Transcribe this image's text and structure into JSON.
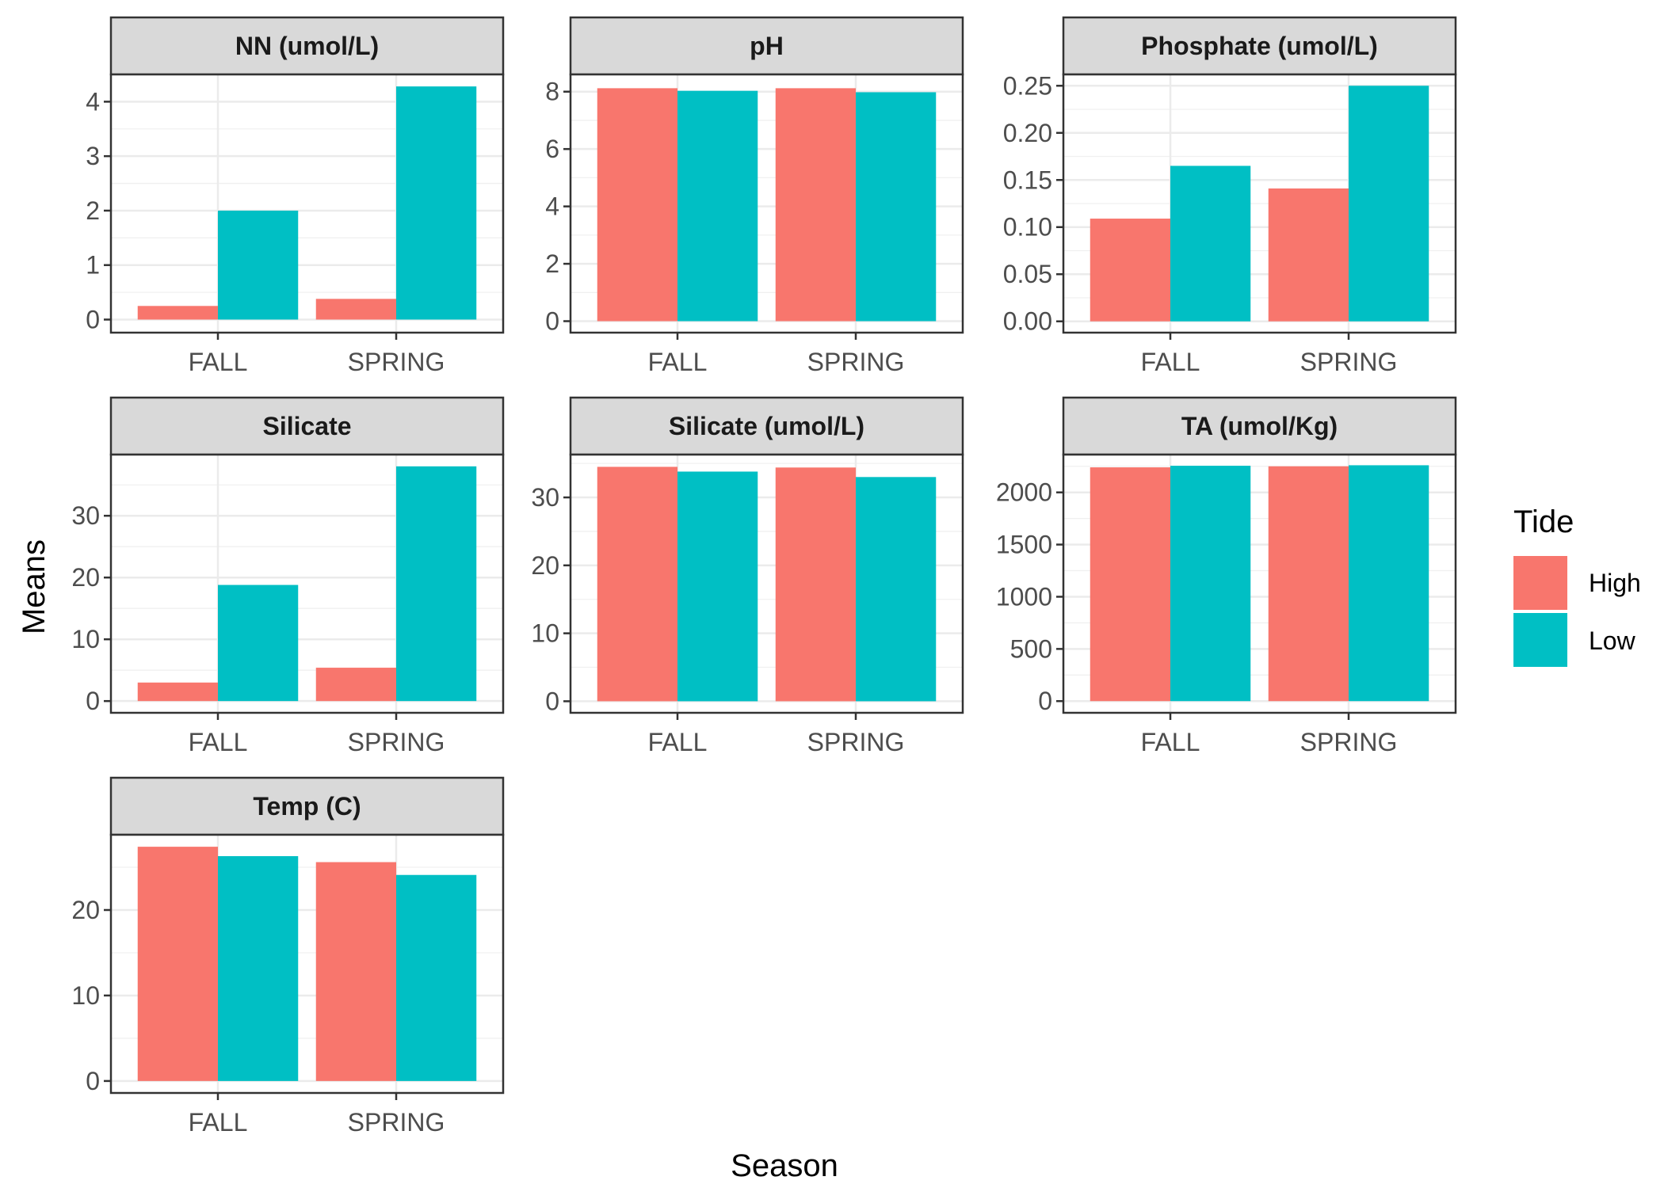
{
  "chart_data": {
    "type": "bar",
    "xlabel": "Season",
    "ylabel": "Means",
    "categories": [
      "FALL",
      "SPRING"
    ],
    "legend": {
      "title": "Tide",
      "placement": "right",
      "entries": [
        {
          "label": "High",
          "color": "#F8766D"
        },
        {
          "label": "Low",
          "color": "#00BFC4"
        }
      ]
    },
    "grid": true,
    "facets": [
      {
        "title": "NN (umol/L)",
        "ylim": [
          -0.24,
          4.5
        ],
        "yticks": [
          0,
          1,
          2,
          3,
          4
        ],
        "tick_labels": [
          "0",
          "1",
          "2",
          "3",
          "4"
        ],
        "series": [
          {
            "name": "High",
            "values": [
              0.25,
              0.38
            ]
          },
          {
            "name": "Low",
            "values": [
              2.0,
              4.28
            ]
          }
        ]
      },
      {
        "title": "pH",
        "ylim": [
          -0.4,
          8.6
        ],
        "yticks": [
          0,
          2,
          4,
          6,
          8
        ],
        "tick_labels": [
          "0",
          "2",
          "4",
          "6",
          "8"
        ],
        "series": [
          {
            "name": "High",
            "values": [
              8.12,
              8.12
            ]
          },
          {
            "name": "Low",
            "values": [
              8.03,
              7.98
            ]
          }
        ]
      },
      {
        "title": "Phosphate (umol/L)",
        "ylim": [
          -0.012,
          0.262
        ],
        "yticks": [
          0,
          0.05,
          0.1,
          0.15,
          0.2,
          0.25
        ],
        "tick_labels": [
          "0.00",
          "0.05",
          "0.10",
          "0.15",
          "0.20",
          "0.25"
        ],
        "series": [
          {
            "name": "High",
            "values": [
              0.109,
              0.141
            ]
          },
          {
            "name": "Low",
            "values": [
              0.165,
              0.25
            ]
          }
        ]
      },
      {
        "title": "Silicate",
        "ylim": [
          -1.9,
          39.9
        ],
        "yticks": [
          0,
          10,
          20,
          30
        ],
        "tick_labels": [
          "0",
          "10",
          "20",
          "30"
        ],
        "series": [
          {
            "name": "High",
            "values": [
              3.0,
              5.4
            ]
          },
          {
            "name": "Low",
            "values": [
              18.8,
              38.0
            ]
          }
        ]
      },
      {
        "title": "Silicate (umol/L)",
        "ylim": [
          -1.7,
          36.3
        ],
        "yticks": [
          0,
          10,
          20,
          30
        ],
        "tick_labels": [
          "0",
          "10",
          "20",
          "30"
        ],
        "series": [
          {
            "name": "High",
            "values": [
              34.5,
              34.4
            ]
          },
          {
            "name": "Low",
            "values": [
              33.8,
              33.0
            ]
          }
        ]
      },
      {
        "title": "TA (umol/Kg)",
        "ylim": [
          -112,
          2362
        ],
        "yticks": [
          0,
          500,
          1000,
          1500,
          2000
        ],
        "tick_labels": [
          "0",
          "500",
          "1000",
          "1500",
          "2000"
        ],
        "series": [
          {
            "name": "High",
            "values": [
              2240,
              2250
            ]
          },
          {
            "name": "Low",
            "values": [
              2255,
              2260
            ]
          }
        ]
      },
      {
        "title": "Temp (C)",
        "ylim": [
          -1.4,
          28.8
        ],
        "yticks": [
          0,
          10,
          20
        ],
        "tick_labels": [
          "0",
          "10",
          "20"
        ],
        "series": [
          {
            "name": "High",
            "values": [
              27.4,
              25.6
            ]
          },
          {
            "name": "Low",
            "values": [
              26.3,
              24.1
            ]
          }
        ]
      }
    ]
  }
}
